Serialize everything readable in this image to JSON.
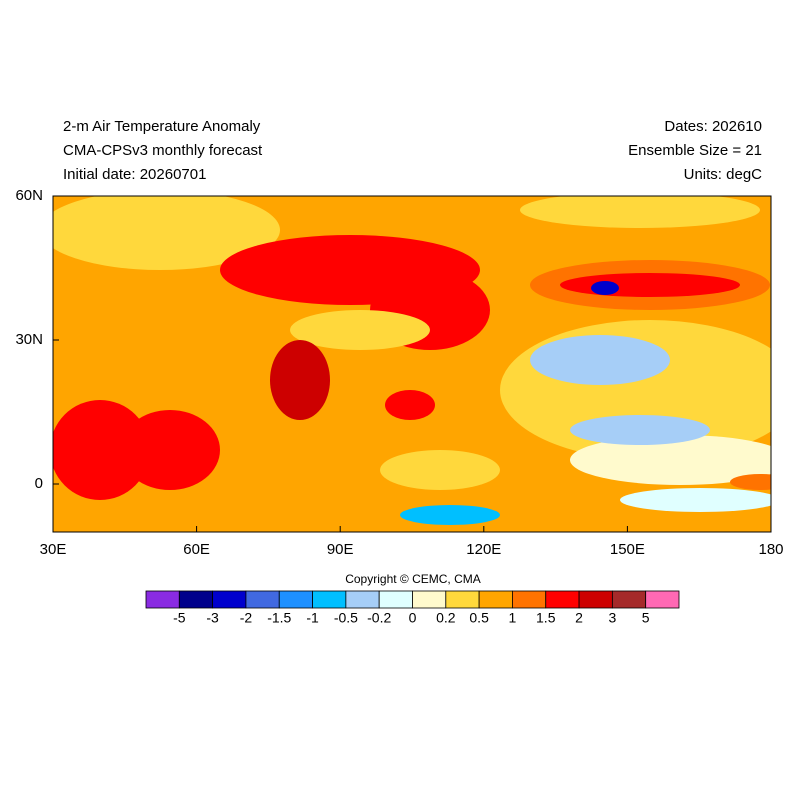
{
  "header": {
    "left": [
      "2-m Air Temperature Anomaly",
      "CMA-CPSv3 monthly forecast",
      "Initial date: 20260701"
    ],
    "right": [
      "Dates: 202610",
      "Ensemble Size = 21",
      "Units: degC"
    ]
  },
  "map": {
    "xlim": [
      30,
      180
    ],
    "ylim": [
      -10,
      60
    ],
    "xticks": [
      {
        "value": 30,
        "label": "30E"
      },
      {
        "value": 60,
        "label": "60E"
      },
      {
        "value": 90,
        "label": "90E"
      },
      {
        "value": 120,
        "label": "120E"
      },
      {
        "value": 150,
        "label": "150E"
      },
      {
        "value": 180,
        "label": "180"
      }
    ],
    "yticks": [
      {
        "value": 60,
        "label": "60N"
      },
      {
        "value": 30,
        "label": "30N"
      },
      {
        "value": 0,
        "label": "0"
      }
    ]
  },
  "copyright": "Copyright © CEMC, CMA",
  "colorbar": {
    "levels": [
      -5,
      -3,
      -2,
      -1.5,
      -1,
      -0.5,
      -0.2,
      0,
      0.2,
      0.5,
      1,
      1.5,
      2,
      3,
      5
    ],
    "colors": [
      "#8a2be2",
      "#00008b",
      "#0000cd",
      "#4169e1",
      "#1e90ff",
      "#00bfff",
      "#a6cef7",
      "#e0ffff",
      "#fffacd",
      "#ffd83c",
      "#ffa500",
      "#ff7300",
      "#ff0000",
      "#cd0000",
      "#a52a2a",
      "#ff69b4"
    ]
  }
}
